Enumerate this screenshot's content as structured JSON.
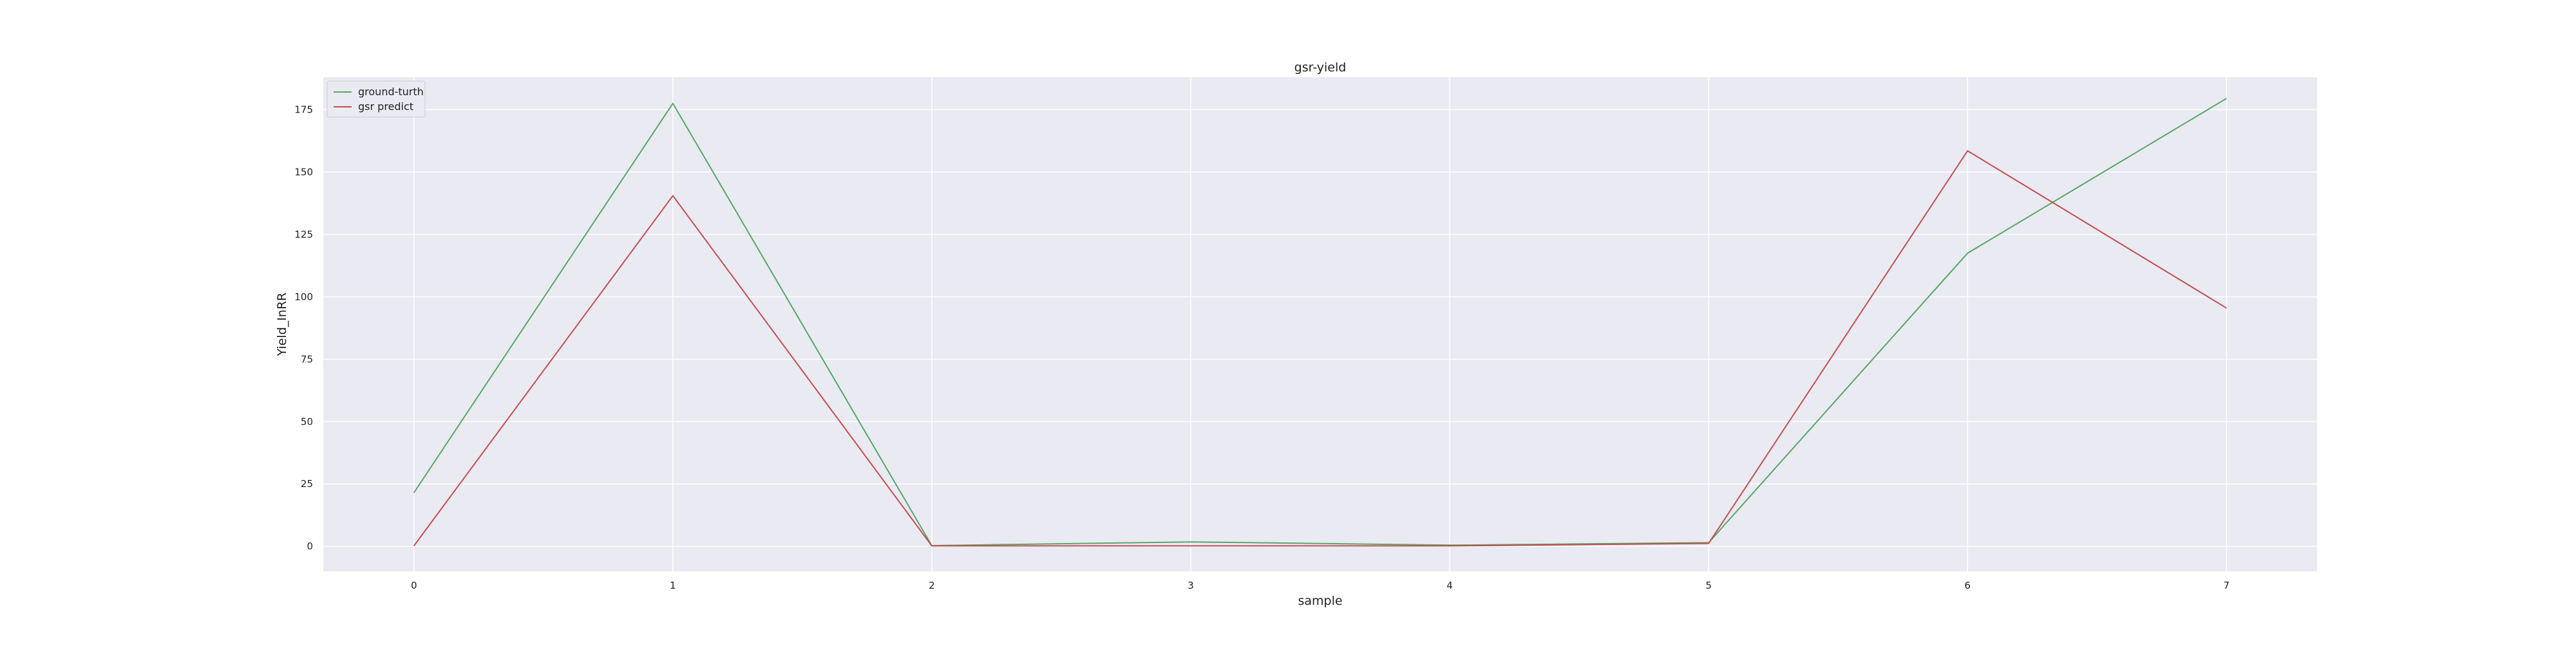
{
  "chart_data": {
    "type": "line",
    "title": "gsr-yield",
    "xlabel": "sample",
    "ylabel": "Yield_InRR",
    "x": [
      0,
      1,
      2,
      3,
      4,
      5,
      6,
      7
    ],
    "xlim": [
      -0.35,
      7.35
    ],
    "ylim": [
      -10,
      188
    ],
    "yticks": [
      0,
      25,
      50,
      75,
      100,
      125,
      150,
      175
    ],
    "grid": true,
    "legend_position": "top-left",
    "background": "#eaeaf2",
    "series": [
      {
        "name": "ground-turth",
        "color": "#55a868",
        "values": [
          21.5,
          177.5,
          0.3,
          1.8,
          0.5,
          1.5,
          117.5,
          179.5
        ]
      },
      {
        "name": "gsr predict",
        "color": "#c44e52",
        "values": [
          0.2,
          140.5,
          0.2,
          0.2,
          0.2,
          1.2,
          158.5,
          95.5
        ]
      }
    ]
  }
}
